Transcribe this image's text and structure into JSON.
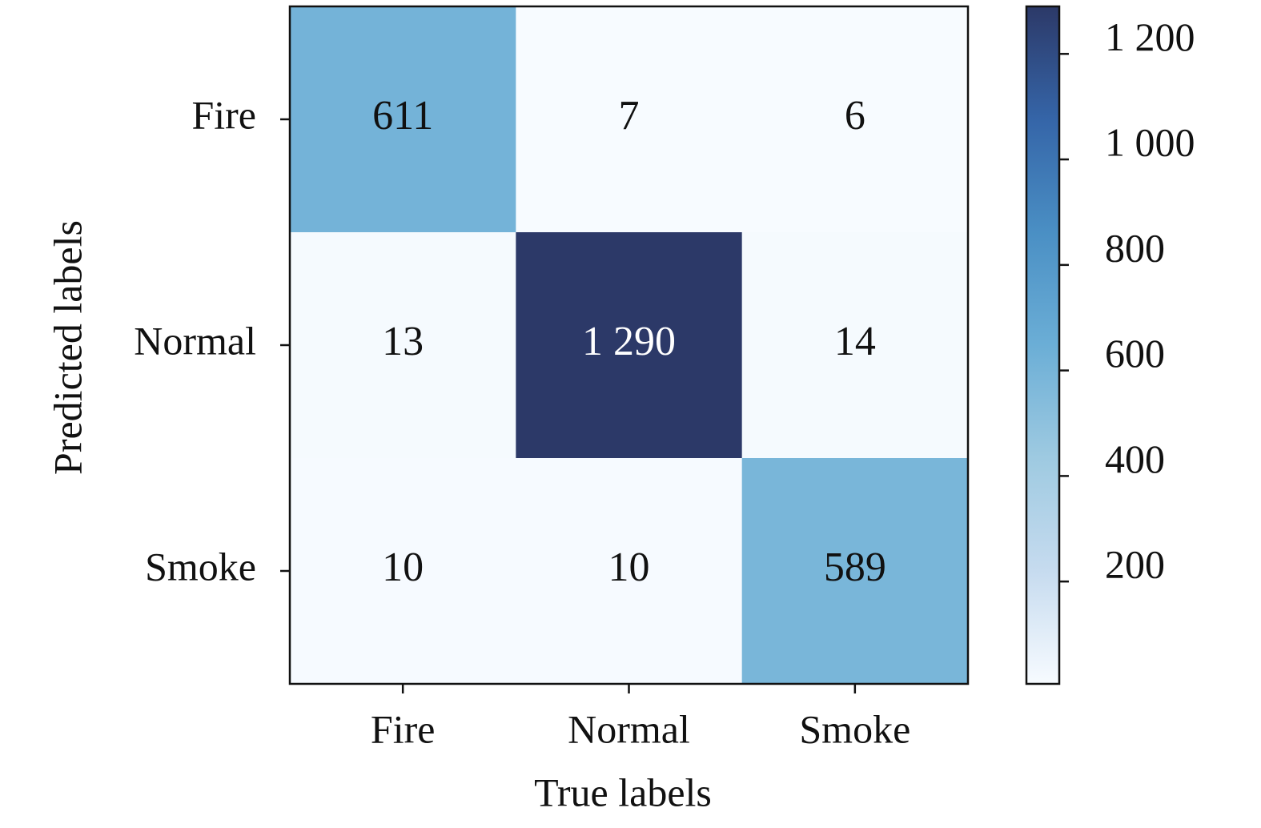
{
  "chart_data": {
    "type": "heatmap",
    "x_categories": [
      "Fire",
      "Normal",
      "Smoke"
    ],
    "y_categories": [
      "Fire",
      "Normal",
      "Smoke"
    ],
    "values": [
      [
        611,
        7,
        6
      ],
      [
        13,
        1290,
        14
      ],
      [
        10,
        10,
        589
      ]
    ],
    "value_labels": [
      [
        "611",
        "7",
        "6"
      ],
      [
        "13",
        "1 290",
        "14"
      ],
      [
        "10",
        "10",
        "589"
      ]
    ],
    "xlabel": "True labels",
    "ylabel": "Predicted labels",
    "clim": [
      6,
      1290
    ],
    "cticks": [
      200,
      400,
      600,
      800,
      {
        "value": 1000,
        "label": "1 000"
      },
      {
        "value": 1200,
        "label": "1 200"
      }
    ],
    "colormap": [
      "#f7fbff",
      "#c6dbef",
      "#9ecae1",
      "#6baed6",
      "#4a8fc4",
      "#3565a8",
      "#2c3968"
    ]
  }
}
